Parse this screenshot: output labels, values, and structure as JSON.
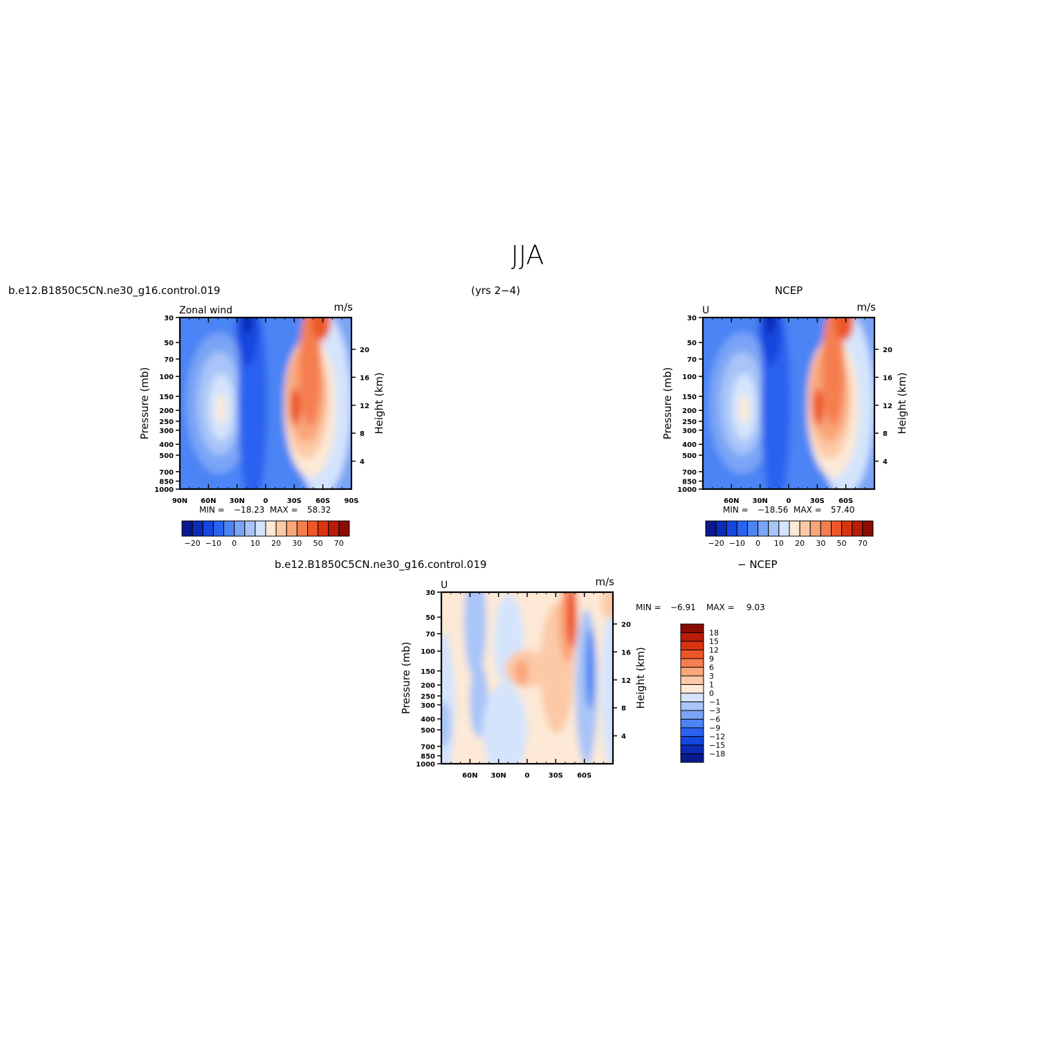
{
  "page": {
    "title": "JJA",
    "case_label": "b.e12.B1850C5CN.ne30_g16.control.019",
    "years_label": "(yrs 2−4)",
    "obs_label": "NCEP",
    "diff_case_label": "b.e12.B1850C5CN.ne30_g16.control.019",
    "diff_obs_label": "− NCEP"
  },
  "chart_data": [
    {
      "id": "model",
      "type": "heatmap",
      "variable": "Zonal wind",
      "units": "m/s",
      "ylabel": "Pressure (mb)",
      "y2label": "Height (km)",
      "x_ticks": [
        "90N",
        "60N",
        "30N",
        "0",
        "30S",
        "60S",
        "90S"
      ],
      "y_ticks": [
        30,
        50,
        70,
        100,
        150,
        200,
        250,
        300,
        400,
        500,
        700,
        850,
        1000
      ],
      "y2_ticks": [
        4,
        8,
        12,
        16,
        20
      ],
      "min_label": "MIN =",
      "min": "−18.23",
      "max_label": "MAX =",
      "max": "58.32",
      "colorbar": {
        "labels": [
          "−20",
          "−10",
          "0",
          "10",
          "20",
          "30",
          "50",
          "70"
        ],
        "colors": [
          "#0a1a8c",
          "#0c2cb6",
          "#1446e0",
          "#2a62f0",
          "#4c84f4",
          "#7aa4f6",
          "#a8c4f8",
          "#d4e4fc",
          "#fde9d6",
          "#fcc9a6",
          "#f9a67a",
          "#f57e4f",
          "#ed5628",
          "#d8350f",
          "#b81d08",
          "#8a0d04"
        ]
      }
    },
    {
      "id": "obs",
      "type": "heatmap",
      "variable": "U",
      "units": "m/s",
      "ylabel": "Pressure (mb)",
      "y2label": "Height (km)",
      "x_ticks": [
        "60N",
        "30N",
        "0",
        "30S",
        "60S"
      ],
      "y_ticks": [
        30,
        50,
        70,
        100,
        150,
        200,
        250,
        300,
        400,
        500,
        700,
        850,
        1000
      ],
      "y2_ticks": [
        4,
        8,
        12,
        16,
        20
      ],
      "min_label": "MIN =",
      "min": "−18.56",
      "max_label": "MAX =",
      "max": "57.40",
      "colorbar": {
        "labels": [
          "−20",
          "−10",
          "0",
          "10",
          "20",
          "30",
          "50",
          "70"
        ],
        "colors": [
          "#0a1a8c",
          "#0c2cb6",
          "#1446e0",
          "#2a62f0",
          "#4c84f4",
          "#7aa4f6",
          "#a8c4f8",
          "#d4e4fc",
          "#fde9d6",
          "#fcc9a6",
          "#f9a67a",
          "#f57e4f",
          "#ed5628",
          "#d8350f",
          "#b81d08",
          "#8a0d04"
        ]
      }
    },
    {
      "id": "diff",
      "type": "heatmap",
      "variable": "U",
      "units": "m/s",
      "ylabel": "Pressure (mb)",
      "y2label": "Height (km)",
      "x_ticks": [
        "60N",
        "30N",
        "0",
        "30S",
        "60S"
      ],
      "y_ticks": [
        30,
        50,
        70,
        100,
        150,
        200,
        250,
        300,
        400,
        500,
        700,
        850,
        1000
      ],
      "y2_ticks": [
        4,
        8,
        12,
        16,
        20
      ],
      "min_label": "MIN =",
      "min": "−6.91",
      "max_label": "MAX =",
      "max": "9.03",
      "colorbar": {
        "labels": [
          "18",
          "15",
          "12",
          "9",
          "6",
          "3",
          "1",
          "0",
          "−1",
          "−3",
          "−6",
          "−9",
          "−12",
          "−15",
          "−18"
        ],
        "colors": [
          "#8a0d04",
          "#b81d08",
          "#d8350f",
          "#ed5628",
          "#f57e4f",
          "#f9a67a",
          "#fcc9a6",
          "#fde9d6",
          "#d4e4fc",
          "#a8c4f8",
          "#7aa4f6",
          "#4c84f4",
          "#2a62f0",
          "#1446e0",
          "#0c2cb6",
          "#0a1a8c"
        ]
      }
    }
  ]
}
